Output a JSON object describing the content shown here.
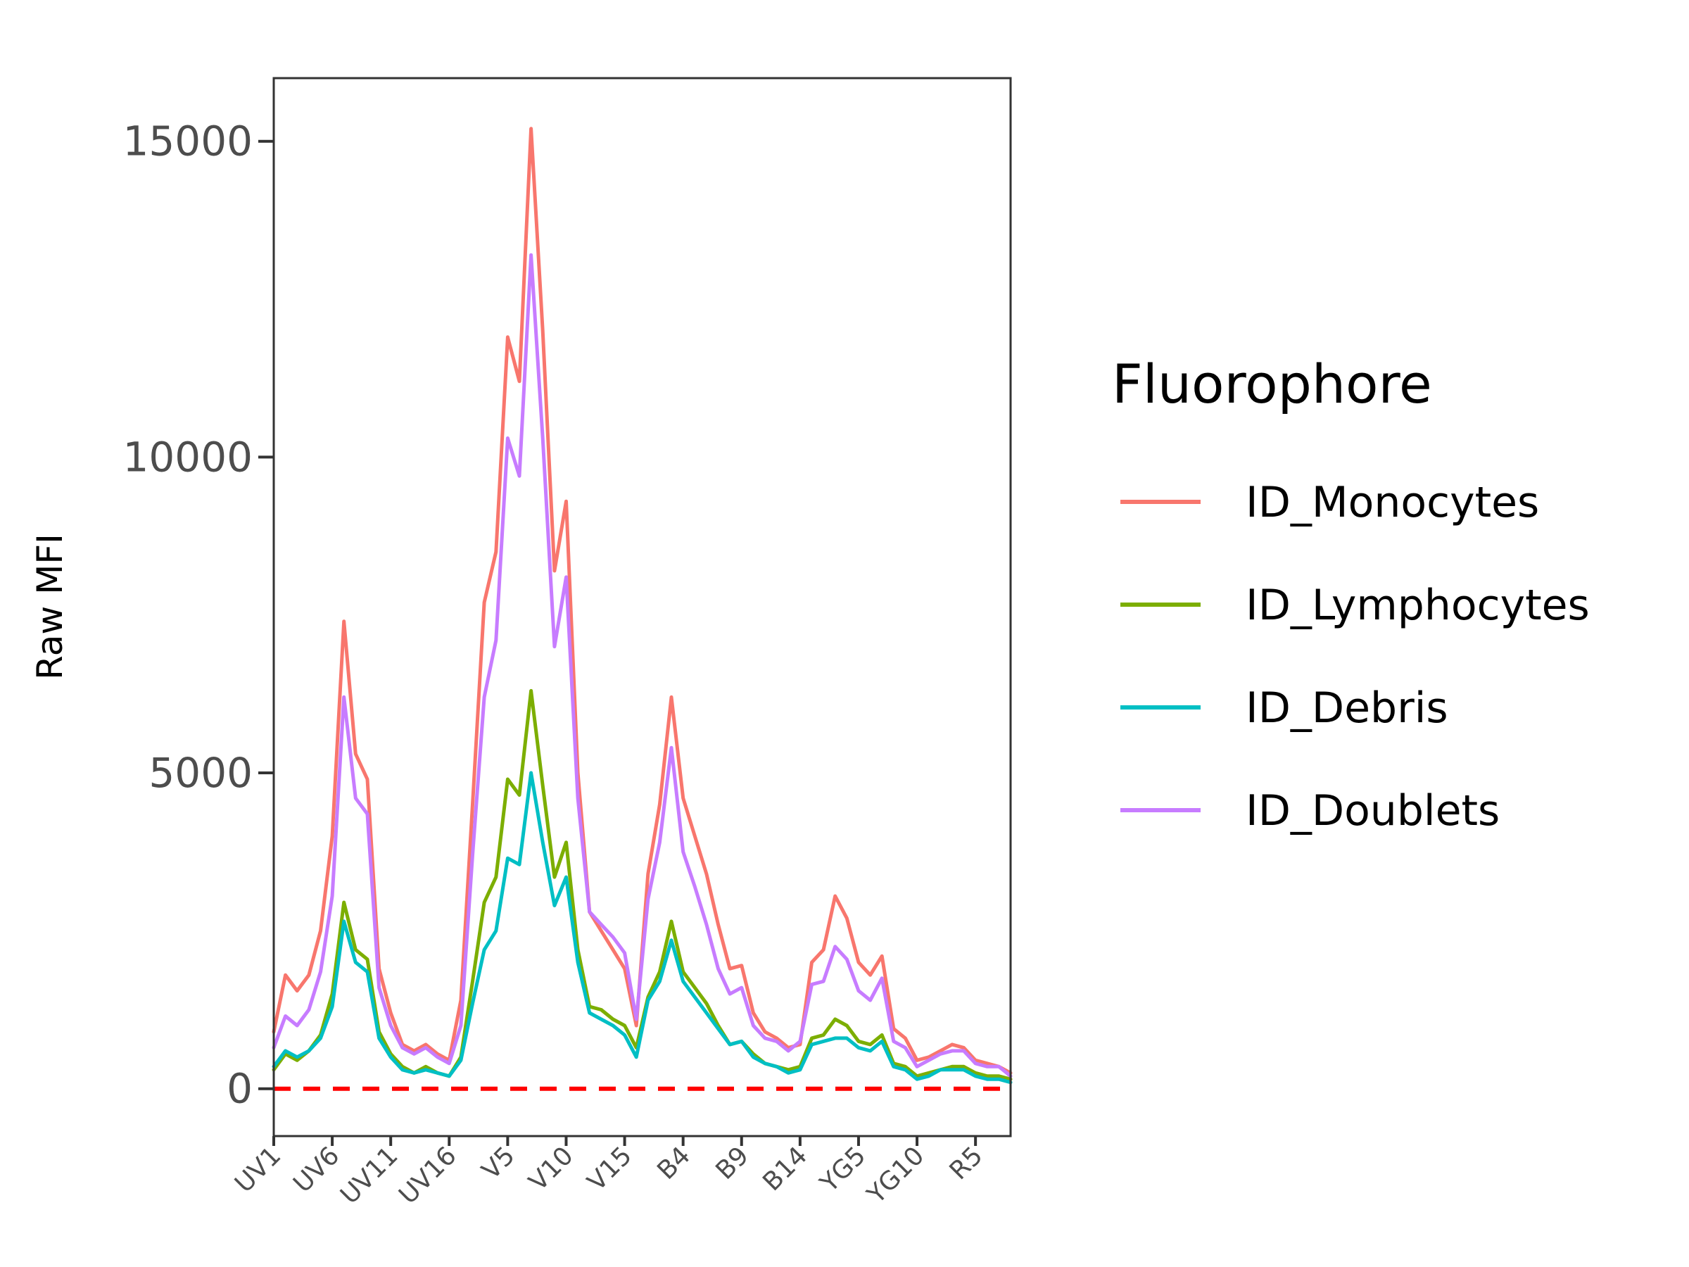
{
  "chart_data": {
    "type": "line",
    "ylabel": "Raw MFI",
    "xlabel": "",
    "ylim": [
      -750,
      16000
    ],
    "y_ticks": [
      0,
      5000,
      10000,
      15000
    ],
    "x_tick_labels": [
      "UV1",
      "UV6",
      "UV11",
      "UV16",
      "V5",
      "V10",
      "V15",
      "B4",
      "B9",
      "B14",
      "YG5",
      "YG10",
      "R5"
    ],
    "x_tick_positions": [
      1,
      6,
      11,
      16,
      21,
      26,
      31,
      36,
      41,
      46,
      51,
      56,
      61
    ],
    "x_range": [
      1,
      64
    ],
    "reference_line": {
      "y": 0,
      "style": "dashed",
      "color": "#ff0000"
    },
    "grid": false,
    "legend_title": "Fluorophore",
    "legend_position": "right",
    "series": [
      {
        "name": "ID_Monocytes",
        "color": "#F8766D",
        "values": [
          900,
          1800,
          1550,
          1800,
          2500,
          4000,
          7400,
          5300,
          4900,
          1900,
          1200,
          700,
          600,
          700,
          550,
          450,
          1400,
          4500,
          7700,
          8500,
          11900,
          11200,
          15200,
          12000,
          8200,
          9300,
          5000,
          2800,
          2500,
          2200,
          1900,
          1000,
          3400,
          4500,
          6200,
          4600,
          4000,
          3400,
          2600,
          1900,
          1950,
          1200,
          900,
          800,
          650,
          700,
          2000,
          2200,
          3050,
          2700,
          2000,
          1800,
          2100,
          950,
          800,
          450,
          500,
          600,
          700,
          650,
          450,
          400,
          350,
          250
        ]
      },
      {
        "name": "ID_Lymphocytes",
        "color": "#7CAE00",
        "values": [
          300,
          550,
          450,
          600,
          850,
          1500,
          2950,
          2200,
          2050,
          900,
          550,
          350,
          250,
          350,
          250,
          200,
          500,
          1700,
          2950,
          3350,
          4900,
          4650,
          6300,
          4800,
          3350,
          3900,
          2200,
          1300,
          1250,
          1100,
          1000,
          650,
          1450,
          1850,
          2650,
          1850,
          1600,
          1350,
          1000,
          700,
          750,
          550,
          400,
          350,
          300,
          350,
          800,
          850,
          1100,
          1000,
          750,
          700,
          850,
          400,
          350,
          200,
          250,
          300,
          350,
          350,
          250,
          200,
          200,
          150
        ]
      },
      {
        "name": "ID_Debris",
        "color": "#00BFC4",
        "values": [
          350,
          600,
          500,
          600,
          800,
          1300,
          2650,
          2000,
          1850,
          800,
          500,
          300,
          250,
          300,
          250,
          200,
          450,
          1350,
          2200,
          2500,
          3650,
          3550,
          5000,
          3900,
          2900,
          3350,
          2000,
          1200,
          1100,
          1000,
          850,
          500,
          1400,
          1700,
          2350,
          1700,
          1450,
          1200,
          950,
          700,
          750,
          500,
          400,
          350,
          250,
          300,
          700,
          750,
          800,
          800,
          650,
          600,
          750,
          350,
          300,
          150,
          200,
          300,
          300,
          300,
          200,
          150,
          150,
          100
        ]
      },
      {
        "name": "ID_Doublets",
        "color": "#C77CFF",
        "values": [
          650,
          1150,
          1000,
          1250,
          1850,
          3050,
          6200,
          4600,
          4350,
          1600,
          1000,
          650,
          550,
          650,
          500,
          400,
          1000,
          3700,
          6200,
          7100,
          10300,
          9700,
          13200,
          10300,
          7000,
          8100,
          4600,
          2800,
          2600,
          2400,
          2150,
          1100,
          3000,
          3900,
          5400,
          3750,
          3200,
          2600,
          1900,
          1500,
          1600,
          1000,
          800,
          750,
          600,
          750,
          1650,
          1700,
          2250,
          2050,
          1550,
          1400,
          1750,
          750,
          650,
          350,
          450,
          550,
          600,
          600,
          400,
          350,
          350,
          200
        ]
      }
    ]
  }
}
